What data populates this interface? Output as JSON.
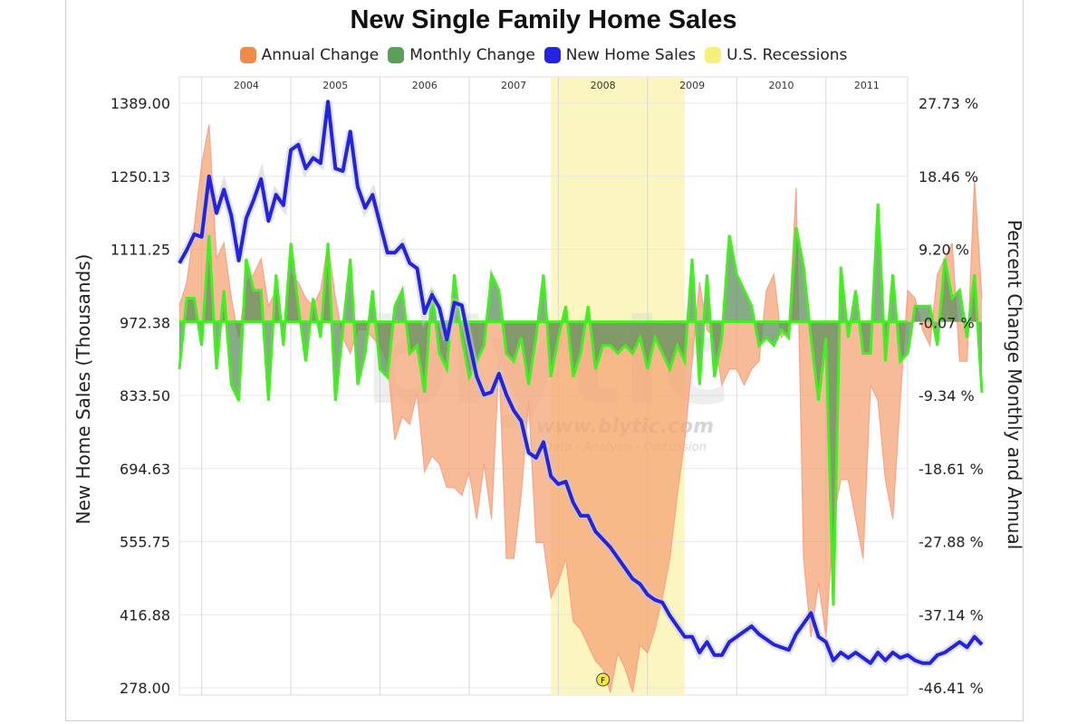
{
  "chart_data": {
    "type": "line",
    "title": "New Single Family Home Sales",
    "legend": [
      {
        "label": "Annual Change",
        "color": "#f08a4b"
      },
      {
        "label": "Monthly Change",
        "color": "#5aa05a"
      },
      {
        "label": "New Home Sales",
        "color": "#2323e0"
      },
      {
        "label": "U.S. Recessions",
        "color": "#f5f07a"
      }
    ],
    "legend_position": "top",
    "ylabel_left": "New Home Sales (Thousands)",
    "ylabel_right": "Percent Change Monthly and Annual",
    "y_left_ticks": [
      "1389.00",
      "1250.13",
      "1111.25",
      "972.38",
      "833.50",
      "694.63",
      "555.75",
      "416.88",
      "278.00"
    ],
    "y_right_ticks": [
      "27.73 %",
      "18.46 %",
      "9.20 %",
      "-0.07 %",
      "-9.34 %",
      "-18.61 %",
      "-27.88 %",
      "-37.14 %",
      "-46.41 %"
    ],
    "ylim_left": [
      278.0,
      1389.0
    ],
    "ylim_right": [
      -46.41,
      27.73
    ],
    "x_year_labels": [
      "2004",
      "2005",
      "2006",
      "2007",
      "2008",
      "2009",
      "2010",
      "2011"
    ],
    "x_range": [
      "2003-10",
      "2011-12"
    ],
    "grid": true,
    "recession": {
      "start": "2007-12",
      "end": "2009-06"
    },
    "watermark": {
      "logo": "blytic",
      "url": "www.blytic.com",
      "tagline": "Data - Analysis - Discussion"
    },
    "flag_marker": "F",
    "series": [
      {
        "name": "New Home Sales",
        "x_start": "2003-10",
        "interval": "month",
        "values": [
          1085,
          1110,
          1140,
          1135,
          1250,
          1180,
          1225,
          1175,
          1090,
          1170,
          1205,
          1245,
          1165,
          1215,
          1195,
          1300,
          1310,
          1265,
          1285,
          1275,
          1392,
          1265,
          1260,
          1335,
          1230,
          1190,
          1215,
          1160,
          1105,
          1105,
          1120,
          1085,
          1075,
          990,
          1025,
          1000,
          940,
          1010,
          1005,
          935,
          870,
          835,
          840,
          875,
          835,
          805,
          785,
          725,
          715,
          745,
          680,
          665,
          670,
          630,
          605,
          605,
          575,
          560,
          545,
          525,
          505,
          485,
          475,
          455,
          445,
          440,
          415,
          395,
          375,
          375,
          345,
          365,
          340,
          340,
          365,
          375,
          385,
          395,
          380,
          370,
          360,
          355,
          350,
          380,
          400,
          420,
          375,
          365,
          330,
          345,
          335,
          345,
          335,
          325,
          345,
          330,
          345,
          335,
          340,
          330,
          325,
          325,
          340,
          345,
          355,
          365,
          355,
          375,
          360
        ]
      },
      {
        "name": "Monthly Change",
        "x_start": "2003-10",
        "interval": "month",
        "unit": "%",
        "values": [
          -6,
          3,
          3,
          -3,
          11,
          -6,
          4,
          -8,
          -10,
          8,
          4,
          4,
          -10,
          6,
          -3,
          10,
          2,
          -5,
          3,
          -2,
          10,
          -10,
          -1,
          8,
          -8,
          -4,
          4,
          -6,
          -7,
          2,
          4,
          -4,
          -3,
          -9,
          4,
          -4,
          -6,
          6,
          -2,
          -7,
          -5,
          -3,
          6,
          4,
          -4,
          -5,
          -2,
          -8,
          -2,
          6,
          -7,
          -2,
          2,
          -7,
          -4,
          2,
          -6,
          -3,
          -3,
          -4,
          -3,
          -4,
          -2,
          -6,
          -2,
          -4,
          -6,
          -3,
          -5,
          8,
          -8,
          6,
          -7,
          -2,
          11,
          6,
          4,
          2,
          -3,
          -2,
          -3,
          -1,
          -2,
          12,
          7,
          -2,
          -10,
          -2,
          -36,
          7,
          -2,
          4,
          -4,
          -4,
          15,
          -5,
          6,
          -5,
          -4,
          2,
          2,
          2,
          -3,
          8,
          3,
          4,
          -2,
          6,
          -9
        ]
      },
      {
        "name": "Annual Change",
        "x_start": "2003-10",
        "interval": "month",
        "unit": "%",
        "values": [
          2,
          5,
          12,
          20,
          25,
          8,
          10,
          3,
          -2,
          5,
          6,
          8,
          2,
          4,
          -2,
          6,
          5,
          3,
          2,
          4,
          10,
          3,
          -2,
          -4,
          -1,
          -1,
          -2,
          -3,
          -5,
          -15,
          -12,
          -13,
          -9,
          -19,
          -17,
          -18,
          -21,
          -21,
          -22,
          -19,
          -25,
          -18,
          -25,
          -5,
          -30,
          -30,
          -22,
          -10,
          -28,
          -28,
          -35,
          -33,
          -30,
          -38,
          -39,
          -41,
          -43,
          -44,
          -47,
          -42,
          -44,
          -47,
          -41,
          -42,
          -39,
          -35,
          -30,
          -22,
          -15,
          -5,
          5,
          -1,
          -2,
          -8,
          -6,
          -6,
          -8,
          -6,
          -5,
          4,
          6,
          -2,
          -1,
          17,
          -30,
          -40,
          -33,
          -40,
          -25,
          -20,
          -20,
          -25,
          -30,
          -8,
          -10,
          -20,
          -25,
          -10,
          4,
          3,
          -1,
          -3,
          6,
          8,
          10,
          -5,
          -5,
          18,
          3
        ]
      }
    ]
  }
}
